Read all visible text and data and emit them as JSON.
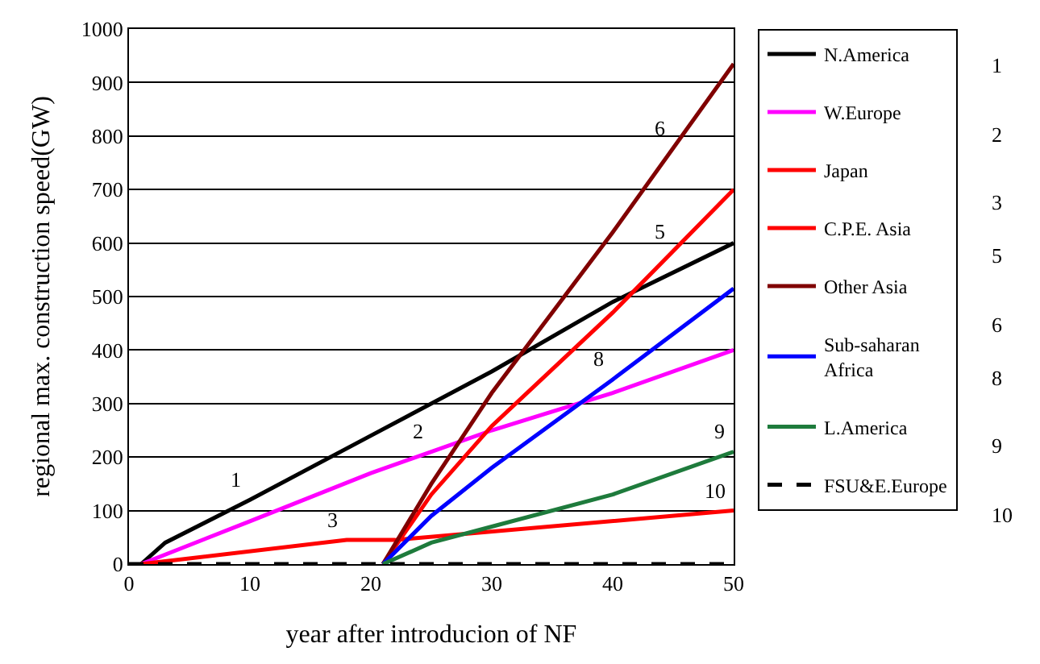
{
  "chart_data": {
    "type": "line",
    "xlabel": "year after introducion of NF",
    "ylabel": "regional max. construction speed(GW)",
    "xlim": [
      0,
      50
    ],
    "xticks": [
      0,
      10,
      20,
      30,
      40,
      50
    ],
    "ylim": [
      0,
      1000
    ],
    "yticks": [
      0,
      100,
      200,
      300,
      400,
      500,
      600,
      700,
      800,
      900,
      1000
    ],
    "grid": "y",
    "legend": "right",
    "line_style": "solid",
    "marker": "none",
    "series": [
      {
        "name": "N.America",
        "color": "#000000",
        "x": [
          1,
          3,
          10,
          20,
          30,
          40,
          50
        ],
        "values": [
          0,
          40,
          120,
          240,
          360,
          490,
          600
        ]
      },
      {
        "name": "W.Europe",
        "color": "#ff00ff",
        "x": [
          1,
          10,
          20,
          25,
          30,
          40,
          50
        ],
        "values": [
          0,
          80,
          170,
          210,
          250,
          320,
          400
        ]
      },
      {
        "name": "Japan",
        "color": "#ff0000",
        "x": [
          1,
          18,
          22,
          50
        ],
        "values": [
          0,
          45,
          45,
          100
        ]
      },
      {
        "name": "C.P.E. Asia",
        "color": "#ff0000",
        "x": [
          21,
          25,
          30,
          40,
          50
        ],
        "values": [
          0,
          130,
          258,
          470,
          700
        ]
      },
      {
        "name": "Other Asia",
        "color": "#800000",
        "x": [
          21,
          25,
          30,
          40,
          50
        ],
        "values": [
          0,
          150,
          320,
          620,
          935
        ]
      },
      {
        "name": "Sub-saharan Africa",
        "color": "#0000ff",
        "x": [
          21,
          25,
          30,
          40,
          50
        ],
        "values": [
          0,
          90,
          180,
          345,
          515
        ]
      },
      {
        "name": "L.America",
        "color": "#1e7b3c",
        "x": [
          21,
          25,
          30,
          40,
          50
        ],
        "values": [
          0,
          40,
          70,
          130,
          210
        ]
      },
      {
        "name": "FSU&E.Europe",
        "color": "#000000",
        "line_style": "dashed",
        "x": [
          0,
          50
        ],
        "values": [
          0,
          0
        ]
      }
    ],
    "annotations": [
      {
        "text": "1",
        "x": 10,
        "y": 120
      },
      {
        "text": "2",
        "x": 25,
        "y": 210
      },
      {
        "text": "3",
        "x": 18,
        "y": 45
      },
      {
        "text": "6",
        "x": 45,
        "y": 778
      },
      {
        "text": "5",
        "x": 45,
        "y": 585
      },
      {
        "text": "8",
        "x": 40,
        "y": 345
      },
      {
        "text": "9",
        "x": 50,
        "y": 210
      },
      {
        "text": "10",
        "x": 50,
        "y": 100
      },
      "1",
      "2",
      "3",
      "5",
      "6",
      "8",
      "9",
      "10"
    ]
  }
}
